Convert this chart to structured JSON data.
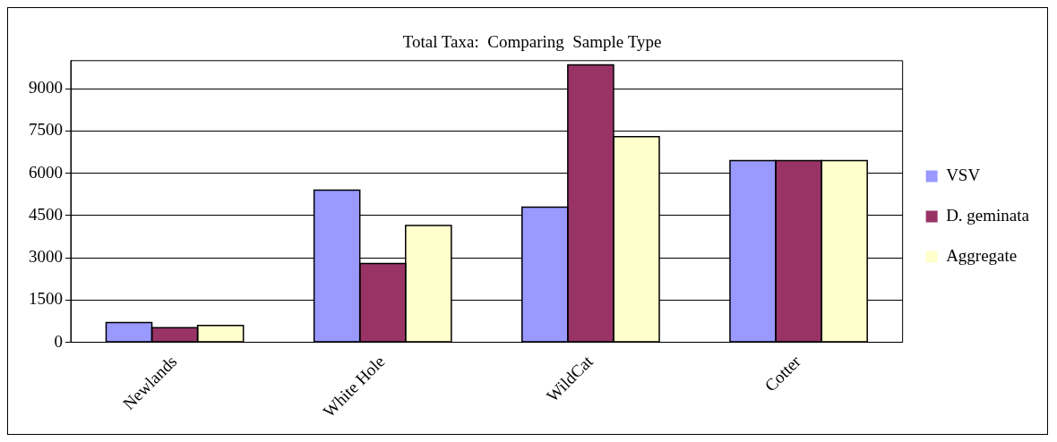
{
  "chart_data": {
    "type": "bar",
    "title": "Total Taxa:  Comparing  Sample Type",
    "categories": [
      "Newlands",
      "White Hole",
      "WildCat",
      "Cotter"
    ],
    "series": [
      {
        "name": "VSV",
        "color": "#9999ff",
        "values": [
          700,
          5400,
          4800,
          6450
        ]
      },
      {
        "name": "D. geminata",
        "color": "#993366",
        "values": [
          520,
          2800,
          9850,
          6450
        ]
      },
      {
        "name": "Aggregate",
        "color": "#ffffcc",
        "values": [
          600,
          4150,
          7300,
          6450
        ]
      }
    ],
    "ylim": [
      0,
      10000
    ],
    "yticks": [
      0,
      1500,
      3000,
      4500,
      6000,
      7500,
      9000
    ],
    "grid": "y",
    "legend": "right"
  }
}
